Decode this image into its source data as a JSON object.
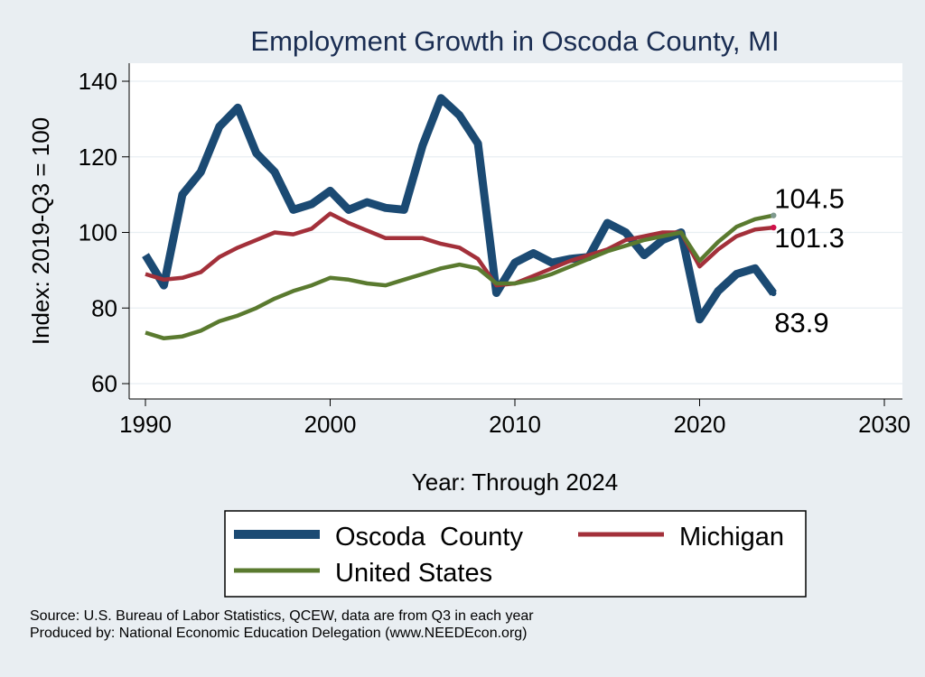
{
  "chart_data": {
    "type": "line",
    "title": "Employment Growth in Oscoda County, MI",
    "xlabel": "Year: Through 2024",
    "ylabel": "Index: 2019-Q3 = 100",
    "xlim": [
      1990,
      2030
    ],
    "ylim": [
      60,
      140
    ],
    "xticks": [
      "1990",
      "2000",
      "2010",
      "2020",
      "2030"
    ],
    "yticks": [
      "60",
      "80",
      "100",
      "120",
      "140"
    ],
    "grid": true,
    "legend_position": "bottom",
    "x": [
      1990,
      1991,
      1992,
      1993,
      1994,
      1995,
      1996,
      1997,
      1998,
      1999,
      2000,
      2001,
      2002,
      2003,
      2004,
      2005,
      2006,
      2007,
      2008,
      2009,
      2010,
      2011,
      2012,
      2013,
      2014,
      2015,
      2016,
      2017,
      2018,
      2019,
      2020,
      2021,
      2022,
      2023,
      2024
    ],
    "series": [
      {
        "name": "Oscoda  County",
        "color": "#1b4a73",
        "values": [
          94,
          86,
          110,
          116,
          128,
          133,
          121,
          116,
          106,
          107.5,
          111,
          106,
          108,
          106.5,
          106,
          123,
          135.5,
          131,
          123.5,
          84,
          92,
          94.5,
          92,
          93,
          93.5,
          102.5,
          100,
          94,
          98,
          100,
          77,
          84.5,
          89,
          90.5,
          83.9
        ],
        "end_label": "83.9"
      },
      {
        "name": "Michigan",
        "color": "#a3303a",
        "values": [
          89,
          87.5,
          88,
          89.5,
          93.5,
          96,
          98,
          100,
          99.5,
          101,
          105,
          102.5,
          100.5,
          98.5,
          98.5,
          98.5,
          97,
          96,
          93,
          86,
          86.5,
          88.5,
          90.5,
          92.5,
          94,
          95.5,
          98,
          99,
          100,
          100,
          91,
          95.5,
          99,
          100.8,
          101.3
        ],
        "end_label": "101.3"
      },
      {
        "name": "United States",
        "color": "#5a7a2f",
        "values": [
          73.5,
          72,
          72.5,
          74,
          76.5,
          78,
          80,
          82.5,
          84.5,
          86,
          88,
          87.5,
          86.5,
          86,
          87.5,
          89,
          90.5,
          91.5,
          90.5,
          86.5,
          86.5,
          87.5,
          89,
          91,
          93,
          95,
          96.5,
          98,
          99,
          100,
          92.5,
          97.5,
          101.5,
          103.5,
          104.5
        ],
        "end_label": "104.5"
      }
    ]
  },
  "source_lines": [
    "Source: U.S. Bureau of Labor Statistics, QCEW, data are from Q3 in each year",
    "Produced by: National Economic Education Delegation (www.NEEDEcon.org)"
  ]
}
